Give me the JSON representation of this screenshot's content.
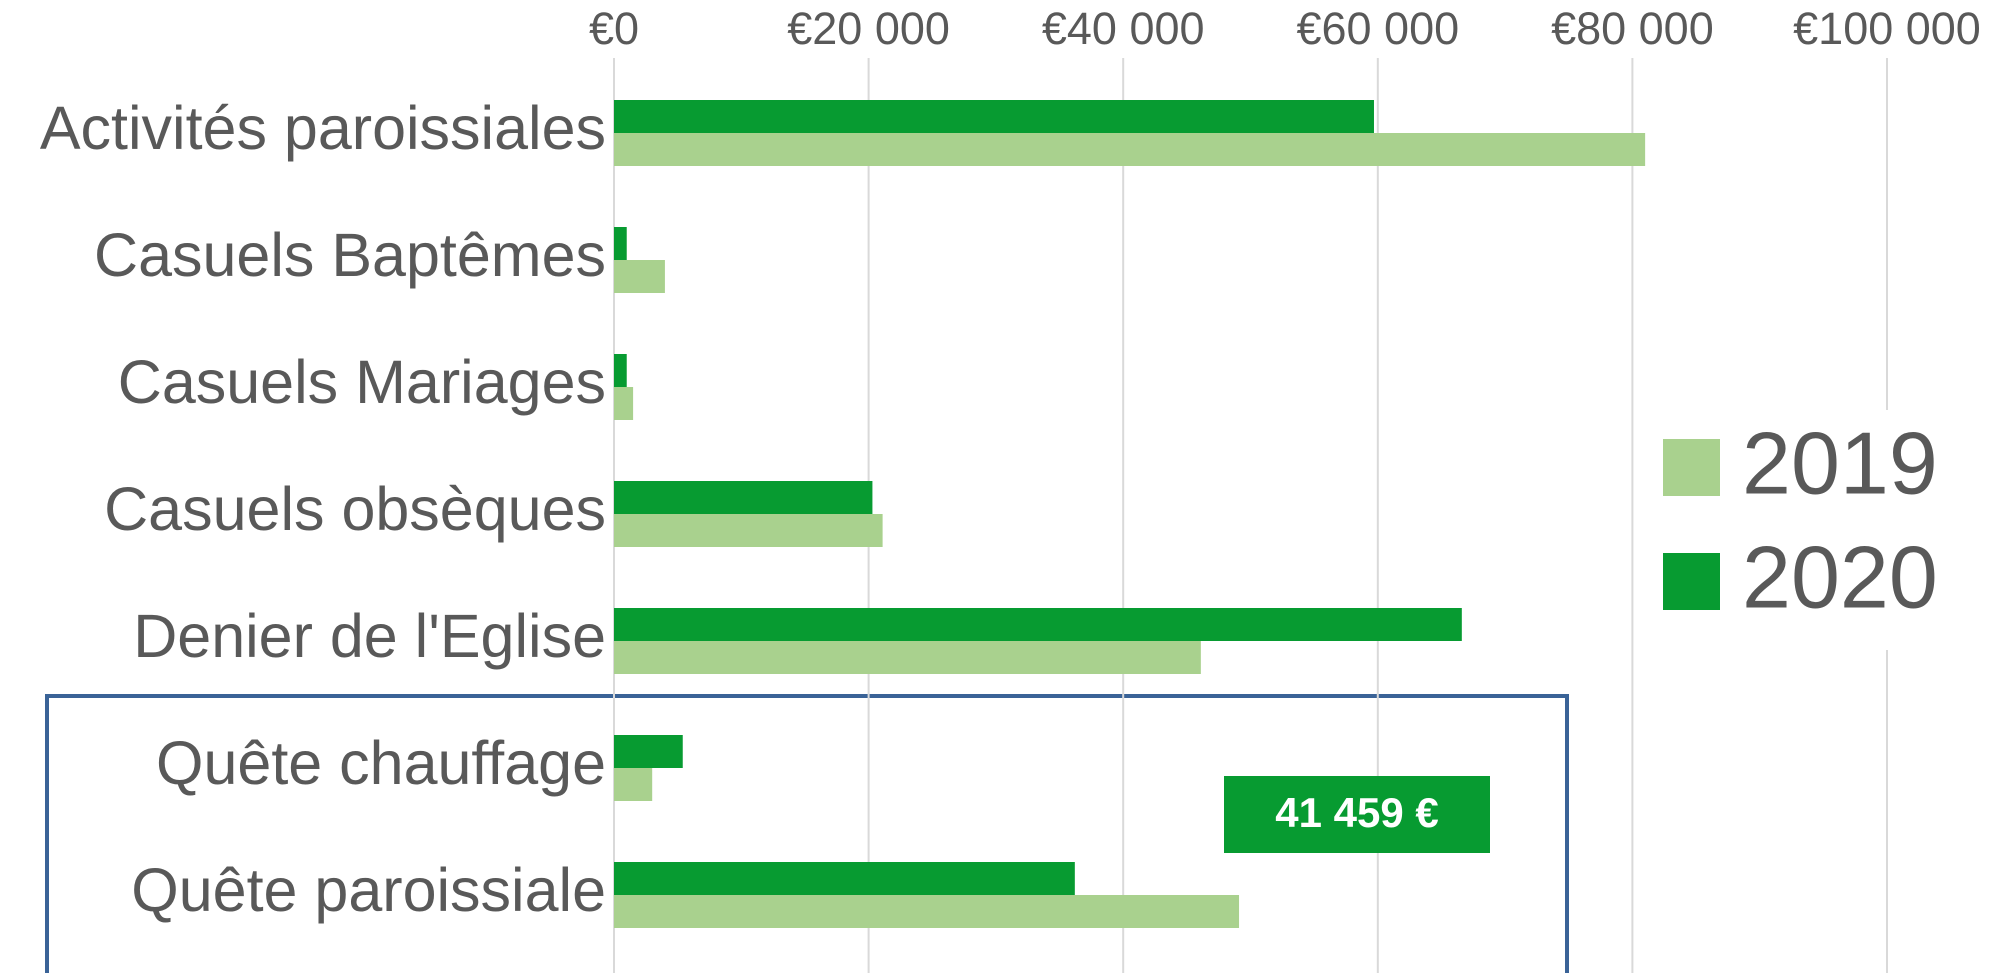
{
  "chart_data": {
    "type": "bar",
    "orientation": "horizontal",
    "categories": [
      "Activités paroissiales",
      "Casuels Baptêmes",
      "Casuels Mariages",
      "Casuels obsèques",
      "Denier de l'Eglise",
      "Quête chauffage",
      "Quête paroissiale"
    ],
    "series": [
      {
        "name": "2019",
        "color": "#a9d18e",
        "values": [
          81000,
          4000,
          1500,
          21100,
          46100,
          3000,
          49100
        ]
      },
      {
        "name": "2020",
        "color": "#079b31",
        "values": [
          59700,
          1000,
          1000,
          20300,
          66600,
          5400,
          36200
        ]
      }
    ],
    "xlim": [
      0,
      100000
    ],
    "xticks": [
      {
        "value": 0,
        "label": "€0"
      },
      {
        "value": 20000,
        "label": "€20 000"
      },
      {
        "value": 40000,
        "label": "€40 000"
      },
      {
        "value": 60000,
        "label": "€60 000"
      },
      {
        "value": 80000,
        "label": "€80 000"
      },
      {
        "value": 100000,
        "label": "€100 000"
      }
    ],
    "grid": true,
    "legend": "right",
    "annotation": "41 459 €"
  }
}
